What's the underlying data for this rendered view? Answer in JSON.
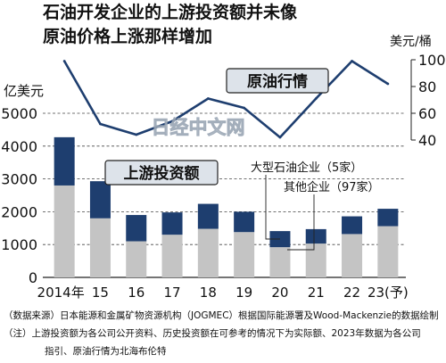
{
  "title": {
    "line1": "石油开发企业的上游投资额并未像",
    "line2": "原油价格上涨那样增加"
  },
  "chart_data": {
    "type": "bar+line",
    "categories": [
      "2014年",
      "15",
      "16",
      "17",
      "18",
      "19",
      "20",
      "21",
      "22",
      "23(予)"
    ],
    "series": [
      {
        "name": "其他企业（97家）",
        "values": [
          2800,
          1800,
          1100,
          1300,
          1480,
          1380,
          920,
          1030,
          1320,
          1560
        ]
      },
      {
        "name": "大型石油企业（5家）",
        "values": [
          1470,
          1130,
          800,
          680,
          760,
          620,
          490,
          440,
          540,
          530
        ]
      }
    ],
    "bar_label": "上游投资额",
    "line": {
      "name": "原油行情",
      "values": [
        99,
        52,
        44,
        54,
        71,
        64,
        42,
        71,
        99,
        82
      ]
    },
    "left_axis": {
      "unit": "亿美元",
      "ylim": [
        0,
        5000
      ],
      "ticks": [
        "0",
        "1000",
        "2000",
        "3000",
        "4000",
        "5000"
      ]
    },
    "right_axis": {
      "unit": "美元/桶",
      "ylim": [
        40,
        100
      ],
      "ticks": [
        "40",
        "60",
        "80",
        "100"
      ]
    },
    "legend_position": "inline"
  },
  "colors": {
    "major": "#1e3e6f",
    "other": "#c4c4c4",
    "line": "#1e3e6f",
    "label_bg": "#dde3ea",
    "grid": "#444444"
  },
  "watermark": "日经中文网",
  "notes": {
    "source": "（数据来源）日本能源和金属矿物资源机构（JOGMEC）根据国际能源署及Wood-Mackenzie的数据绘制",
    "note1": "（注）上游投资额为各公司公开资料、历史投资额在可参考的情况下为实际额、2023年数据为各公司",
    "note2": "指引、原油行情为北海布伦特"
  }
}
